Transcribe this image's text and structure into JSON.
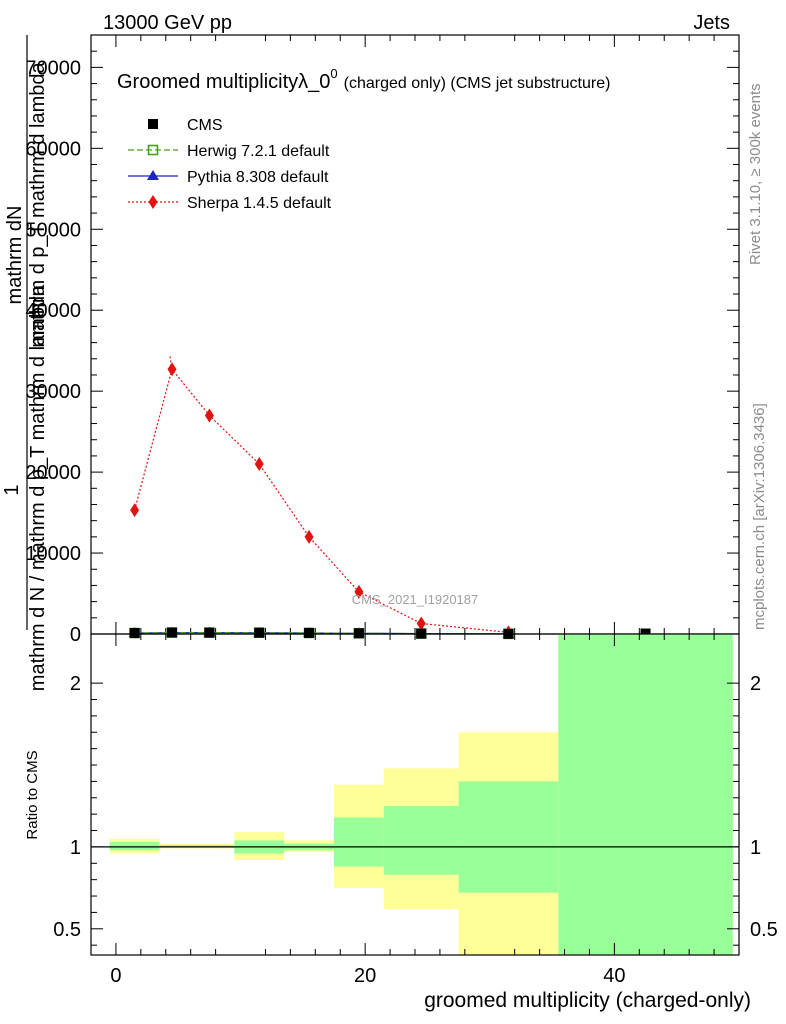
{
  "header": {
    "energy_label": "13000 GeV pp",
    "category_label": "Jets"
  },
  "side_labels": {
    "rivet": "Rivet 3.1.10, ≥ 300k events",
    "mcplots": "mcplots.cern.ch [arXiv:1306.3436]"
  },
  "chart_data": [
    {
      "type": "scatter",
      "title_main": "Groomed multiplicity",
      "title_lambda": "λ_0",
      "title_sup": "0",
      "title_rest": "(charged only) (CMS jet substructure)",
      "watermark": "CMS_2021_I1920187",
      "ylabel_numerator": "mathrm dN",
      "ylabel_overlap": "mathrm d p_T mathrm d lambda",
      "ylabel_one": "1",
      "ylabel_denominator": "mathrm d N / mathrm d p_T mathrm d lambda",
      "xlim": [
        -2,
        50
      ],
      "ylim": [
        0,
        74000
      ],
      "y_ticks": [
        0,
        10000,
        20000,
        30000,
        40000,
        50000,
        60000,
        70000
      ],
      "y_tick_labels": [
        "0",
        "10000",
        "20000",
        "30000",
        "40000",
        "50000",
        "60000",
        "70000"
      ],
      "legend": [
        {
          "name": "CMS",
          "marker": "square-filled",
          "color": "#000000",
          "line": "none"
        },
        {
          "name": "Herwig 7.2.1 default",
          "marker": "square-open",
          "color": "#4a9e1e",
          "line": "dashed"
        },
        {
          "name": "Pythia 8.308 default",
          "marker": "triangle",
          "color": "#1a25c4",
          "line": "solid"
        },
        {
          "name": "Sherpa 1.4.5 default",
          "marker": "diamond",
          "color": "#e3110f",
          "line": "dotted"
        }
      ],
      "series": [
        {
          "name": "CMS",
          "x": [
            1.5,
            4.5,
            7.5,
            11.5,
            15.5,
            19.5,
            24.5,
            31.5,
            42.5
          ],
          "y": [
            120,
            180,
            170,
            160,
            130,
            90,
            50,
            20,
            60
          ]
        },
        {
          "name": "Herwig 7.2.1 default",
          "x": [
            1.5,
            4.5,
            7.5,
            11.5,
            15.5,
            19.5,
            24.5,
            31.5
          ],
          "y": [
            120,
            175,
            170,
            160,
            130,
            90,
            50,
            20
          ]
        },
        {
          "name": "Pythia 8.308 default",
          "x": [
            1.5,
            4.5,
            7.5,
            11.5,
            15.5,
            19.5,
            24.5,
            31.5
          ],
          "y": [
            118,
            178,
            172,
            158,
            128,
            88,
            48,
            18
          ]
        },
        {
          "name": "Sherpa 1.4.5 default",
          "x": [
            1.5,
            4.5,
            7.5,
            11.5,
            15.5,
            19.5,
            24.5,
            31.5
          ],
          "y": [
            15300,
            32700,
            27000,
            21000,
            12000,
            5200,
            1300,
            200
          ],
          "yerr": [
            500,
            700,
            600,
            500,
            300,
            200,
            100,
            50
          ],
          "top_at_left_edge": 34300
        }
      ]
    },
    {
      "type": "area",
      "ylabel": "Ratio to CMS",
      "xlabel": "groomed multiplicity (charged-only)",
      "xlim": [
        -2,
        50
      ],
      "ylim": [
        0.34,
        2.3
      ],
      "x_ticks": [
        0,
        20,
        40
      ],
      "x_tick_labels": [
        "0",
        "20",
        "40"
      ],
      "y_ticks": [
        0.5,
        1,
        2
      ],
      "y_tick_labels": [
        "0.5",
        "1",
        "2"
      ],
      "reference_line": 1,
      "bins": [
        {
          "lo": -0.5,
          "hi": 3.5,
          "yellow": [
            0.96,
            1.05
          ],
          "green": [
            0.98,
            1.03
          ]
        },
        {
          "lo": 3.5,
          "hi": 9.5,
          "yellow": [
            0.99,
            1.02
          ],
          "green": [
            0.995,
            1.01
          ]
        },
        {
          "lo": 9.5,
          "hi": 13.5,
          "yellow": [
            0.92,
            1.09
          ],
          "green": [
            0.96,
            1.04
          ]
        },
        {
          "lo": 13.5,
          "hi": 17.5,
          "yellow": [
            0.97,
            1.04
          ],
          "green": [
            0.98,
            1.02
          ]
        },
        {
          "lo": 17.5,
          "hi": 21.5,
          "yellow": [
            0.75,
            1.38
          ],
          "green": [
            0.88,
            1.18
          ]
        },
        {
          "lo": 21.5,
          "hi": 27.5,
          "yellow": [
            0.62,
            1.48
          ],
          "green": [
            0.83,
            1.25
          ]
        },
        {
          "lo": 27.5,
          "hi": 35.5,
          "yellow": [
            0.34,
            1.7
          ],
          "green": [
            0.72,
            1.4
          ]
        },
        {
          "lo": 35.5,
          "hi": 49.5,
          "yellow": [
            0.34,
            2.3
          ],
          "green": [
            0.34,
            2.3
          ]
        }
      ],
      "colors": {
        "yellow": "#ffff99",
        "green": "#99ff99",
        "reference": "#000000"
      }
    }
  ]
}
